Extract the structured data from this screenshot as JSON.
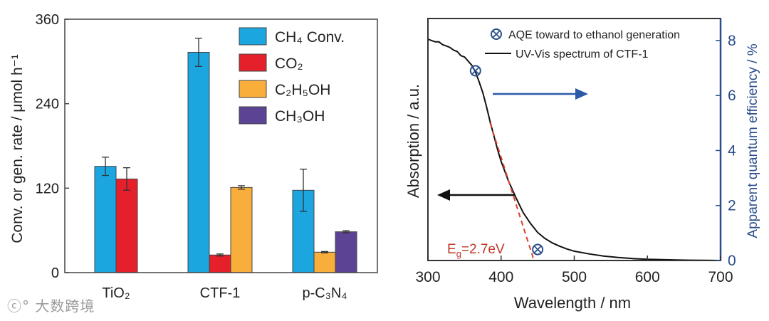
{
  "watermark": "大数跨境",
  "chart_data": [
    {
      "type": "bar",
      "ylabel": "Conv. or gen. rate / μmol h⁻¹",
      "ylim": [
        0,
        360
      ],
      "yticks": [
        0,
        120,
        240,
        360
      ],
      "categories": [
        "TiO₂",
        "CTF-1",
        "p-C₃N₄"
      ],
      "series": [
        {
          "name": "CH₄ Conv.",
          "color": "#1ba6e0",
          "values": [
            151,
            313,
            117
          ],
          "errors": [
            13,
            20,
            30
          ]
        },
        {
          "name": "CO₂",
          "color": "#e5202a",
          "values": [
            133,
            25,
            null
          ],
          "errors": [
            16,
            1.5,
            null
          ]
        },
        {
          "name": "C₂H₅OH",
          "color": "#f9ad3b",
          "values": [
            null,
            121,
            29
          ],
          "errors": [
            null,
            2.5,
            1
          ]
        },
        {
          "name": "CH₃OH",
          "color": "#5c4394",
          "values": [
            null,
            null,
            58
          ],
          "errors": [
            null,
            null,
            1.5
          ]
        }
      ]
    },
    {
      "type": "line",
      "xlabel": "Wavelength / nm",
      "ylabel_left": "Absorption / a.u.",
      "ylabel_right": "Apparent quantum efficiency / %",
      "xlim": [
        300,
        700
      ],
      "xticks": [
        300,
        400,
        500,
        600,
        700
      ],
      "yticks_right": [
        0,
        2,
        4,
        6,
        8
      ],
      "ylim_right": [
        0,
        8.8
      ],
      "legend": [
        {
          "label": "AQE toward to ethanol generation",
          "marker": "circle-x"
        },
        {
          "label": "UV-Vis spectrum of CTF-1",
          "marker": "line"
        }
      ],
      "uvvis_spectrum": {
        "x": [
          300,
          305,
          310,
          315,
          320,
          325,
          330,
          335,
          340,
          345,
          350,
          355,
          360,
          365,
          370,
          375,
          380,
          385,
          390,
          395,
          400,
          410,
          420,
          430,
          440,
          450,
          460,
          470,
          480,
          490,
          500,
          520,
          540,
          560,
          580,
          600,
          620,
          640,
          660,
          680,
          700
        ],
        "y": [
          8.05,
          8.0,
          7.95,
          7.95,
          7.85,
          7.8,
          7.75,
          7.65,
          7.6,
          7.45,
          7.4,
          7.25,
          7.1,
          6.85,
          6.5,
          6.1,
          5.6,
          5.05,
          4.55,
          4.05,
          3.6,
          2.9,
          2.3,
          1.75,
          1.35,
          1.02,
          0.8,
          0.64,
          0.52,
          0.42,
          0.34,
          0.24,
          0.16,
          0.11,
          0.07,
          0.045,
          0.03,
          0.02,
          0.01,
          0.005,
          0.0
        ]
      },
      "aqe_points": [
        {
          "x": 365,
          "y": 6.9
        },
        {
          "x": 450,
          "y": 0.4
        }
      ],
      "bandgap_fit_line": {
        "x": [
          385,
          445
        ],
        "y": [
          5.0,
          0.0
        ]
      },
      "annotation": {
        "prefix": "E",
        "subscript": "g",
        "suffix": "=2.7eV"
      }
    }
  ]
}
